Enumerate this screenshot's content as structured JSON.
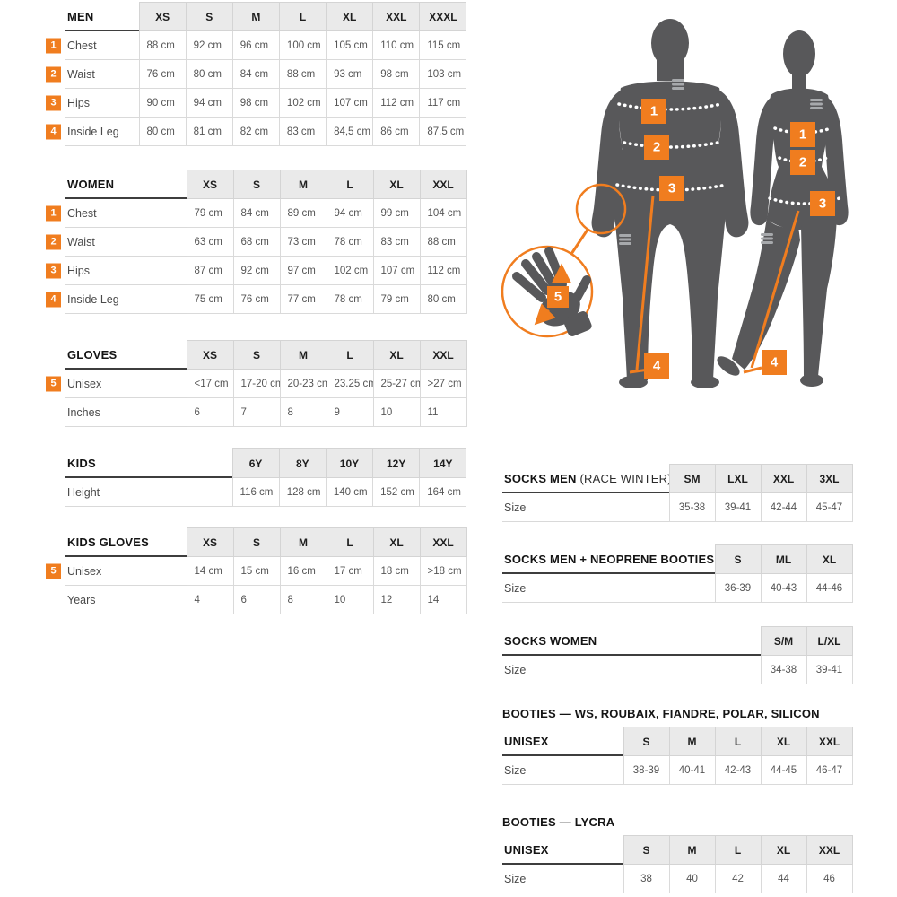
{
  "colors": {
    "accent": "#F07D1F",
    "silhouette": "#58585A",
    "logo_gray": "#A7A9AC"
  },
  "diagram": {
    "markers": [
      "1",
      "2",
      "3",
      "4",
      "5"
    ],
    "marker_meanings": [
      "Chest",
      "Waist",
      "Hips",
      "Inside Leg",
      "Glove hand size"
    ]
  },
  "tables": {
    "left": [
      {
        "id": "men",
        "title": "MEN",
        "columns": [
          "XS",
          "S",
          "M",
          "L",
          "XL",
          "XXL",
          "XXXL"
        ],
        "rows": [
          {
            "badge": "1",
            "label": "Chest",
            "values": [
              "88 cm",
              "92 cm",
              "96 cm",
              "100 cm",
              "105 cm",
              "110 cm",
              "115 cm"
            ]
          },
          {
            "badge": "2",
            "label": "Waist",
            "values": [
              "76 cm",
              "80 cm",
              "84 cm",
              "88 cm",
              "93 cm",
              "98 cm",
              "103 cm"
            ]
          },
          {
            "badge": "3",
            "label": "Hips",
            "values": [
              "90 cm",
              "94 cm",
              "98 cm",
              "102 cm",
              "107 cm",
              "112 cm",
              "117 cm"
            ]
          },
          {
            "badge": "4",
            "label": "Inside Leg",
            "values": [
              "80 cm",
              "81 cm",
              "82 cm",
              "83 cm",
              "84,5 cm",
              "86 cm",
              "87,5 cm"
            ]
          }
        ]
      },
      {
        "id": "women",
        "title": "WOMEN",
        "columns": [
          "XS",
          "S",
          "M",
          "L",
          "XL",
          "XXL"
        ],
        "rows": [
          {
            "badge": "1",
            "label": "Chest",
            "values": [
              "79 cm",
              "84 cm",
              "89 cm",
              "94 cm",
              "99 cm",
              "104 cm"
            ]
          },
          {
            "badge": "2",
            "label": "Waist",
            "values": [
              "63 cm",
              "68 cm",
              "73 cm",
              "78 cm",
              "83 cm",
              "88 cm"
            ]
          },
          {
            "badge": "3",
            "label": "Hips",
            "values": [
              "87 cm",
              "92 cm",
              "97 cm",
              "102 cm",
              "107 cm",
              "112 cm"
            ]
          },
          {
            "badge": "4",
            "label": "Inside Leg",
            "values": [
              "75 cm",
              "76 cm",
              "77 cm",
              "78 cm",
              "79 cm",
              "80 cm"
            ]
          }
        ]
      },
      {
        "id": "gloves",
        "title": "GLOVES",
        "columns": [
          "XS",
          "S",
          "M",
          "L",
          "XL",
          "XXL"
        ],
        "rows": [
          {
            "badge": "5",
            "label": "Unisex",
            "values": [
              "<17 cm",
              "17-20 cm",
              "20-23 cm",
              "23.25 cm",
              "25-27 cm",
              ">27 cm"
            ]
          },
          {
            "label": "Inches",
            "values": [
              "6",
              "7",
              "8",
              "9",
              "10",
              "11"
            ]
          }
        ]
      },
      {
        "id": "kids",
        "title": "KIDS",
        "columns": [
          "6Y",
          "8Y",
          "10Y",
          "12Y",
          "14Y"
        ],
        "rows": [
          {
            "label": "Height",
            "values": [
              "116 cm",
              "128 cm",
              "140 cm",
              "152 cm",
              "164 cm"
            ]
          }
        ]
      },
      {
        "id": "kids_gloves",
        "title": "KIDS GLOVES",
        "columns": [
          "XS",
          "S",
          "M",
          "L",
          "XL",
          "XXL"
        ],
        "rows": [
          {
            "badge": "5",
            "label": "Unisex",
            "values": [
              "14 cm",
              "15 cm",
              "16 cm",
              "17 cm",
              "18 cm",
              ">18 cm"
            ]
          },
          {
            "label": "Years",
            "values": [
              "4",
              "6",
              "8",
              "10",
              "12",
              "14"
            ]
          }
        ]
      }
    ],
    "right": [
      {
        "id": "socks_race",
        "title": "SOCKS MEN",
        "title_suffix": "(RACE WINTER)",
        "columns": [
          "SM",
          "LXL",
          "XXL",
          "3XL"
        ],
        "rows": [
          {
            "label": "Size",
            "values": [
              "35-38",
              "39-41",
              "42-44",
              "45-47"
            ]
          }
        ]
      },
      {
        "id": "socks_neo",
        "title": "SOCKS MEN + NEOPRENE BOOTIES",
        "columns": [
          "S",
          "ML",
          "XL"
        ],
        "rows": [
          {
            "label": "Size",
            "values": [
              "36-39",
              "40-43",
              "44-46"
            ]
          }
        ]
      },
      {
        "id": "socks_women",
        "title": "SOCKS WOMEN",
        "columns": [
          "S/M",
          "L/XL"
        ],
        "rows": [
          {
            "label": "Size",
            "values": [
              "34-38",
              "39-41"
            ]
          }
        ]
      },
      {
        "id": "booties_ws",
        "pretitle": "BOOTIES — WS, ROUBAIX, FIANDRE, POLAR, SILICON",
        "header_label": "UNISEX",
        "columns": [
          "S",
          "M",
          "L",
          "XL",
          "XXL"
        ],
        "rows": [
          {
            "label": "Size",
            "values": [
              "38-39",
              "40-41",
              "42-43",
              "44-45",
              "46-47"
            ]
          }
        ]
      },
      {
        "id": "booties_lycra",
        "pretitle": "BOOTIES — LYCRA",
        "header_label": "UNISEX",
        "columns": [
          "S",
          "M",
          "L",
          "XL",
          "XXL"
        ],
        "rows": [
          {
            "label": "Size",
            "values": [
              "38",
              "40",
              "42",
              "44",
              "46"
            ]
          }
        ]
      }
    ]
  }
}
